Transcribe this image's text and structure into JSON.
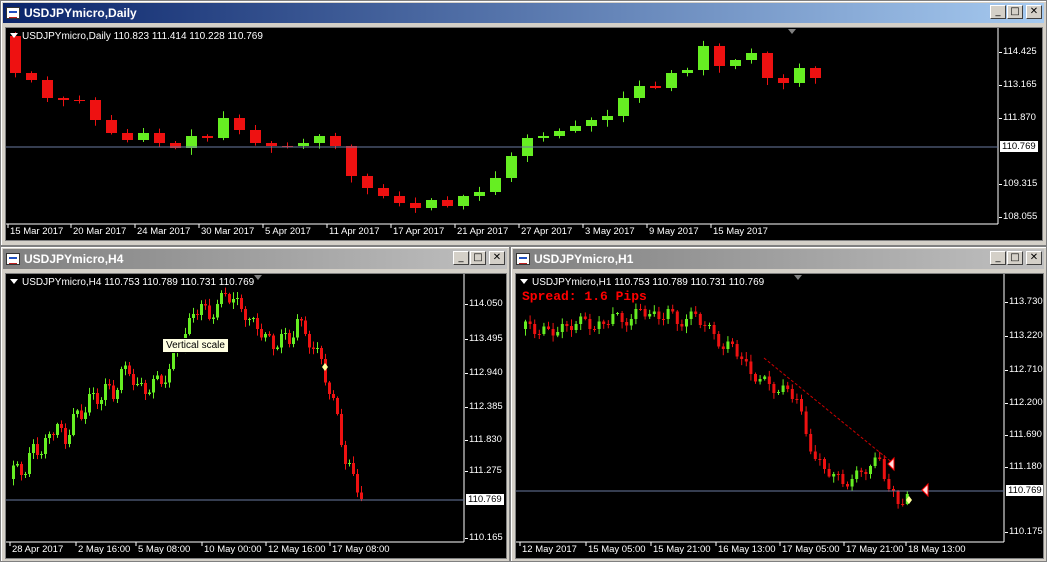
{
  "windows": {
    "daily": {
      "title": "USDJPYmicro,Daily",
      "info": "USDJPYmicro,Daily  110.823 111.414 110.228 110.769",
      "yticks": [
        "114.425",
        "113.165",
        "111.870",
        "110.769",
        "109.315",
        "108.055"
      ],
      "current_price": "110.769",
      "xticks": [
        "15 Mar 2017",
        "20 Mar 2017",
        "24 Mar 2017",
        "30 Mar 2017",
        "5 Apr 2017",
        "11 Apr 2017",
        "17 Apr 2017",
        "21 Apr 2017",
        "27 Apr 2017",
        "3 May 2017",
        "9 May 2017",
        "15 May 2017"
      ]
    },
    "h4": {
      "title": "USDJPYmicro,H4",
      "info": "USDJPYmicro,H4  110.753 110.789 110.731 110.769",
      "tooltip": "Vertical scale",
      "yticks": [
        "114.050",
        "113.495",
        "112.940",
        "112.385",
        "111.830",
        "111.275",
        "110.769",
        "110.165"
      ],
      "current_price": "110.769",
      "xticks": [
        "28 Apr 2017",
        "2 May 16:00",
        "5 May 08:00",
        "10 May 00:00",
        "12 May 16:00",
        "17 May 08:00"
      ]
    },
    "h1": {
      "title": "USDJPYmicro,H1",
      "info": "USDJPYmicro,H1  110.753 110.789 110.731 110.769",
      "spread": "Spread: 1.6 Pips",
      "yticks": [
        "113.730",
        "113.220",
        "112.710",
        "112.200",
        "111.690",
        "111.180",
        "110.769",
        "110.175"
      ],
      "current_price": "110.769",
      "xticks": [
        "12 May 2017",
        "15 May 05:00",
        "15 May 21:00",
        "16 May 13:00",
        "17 May 05:00",
        "17 May 21:00",
        "18 May 13:00"
      ]
    }
  },
  "window_buttons": {
    "minimize": "_",
    "maximize": "□",
    "close": "✕"
  },
  "colors": {
    "bull": "#66ee22",
    "bear": "#ee1111",
    "background": "#000000",
    "price_line": "#6a7aa0",
    "active_title": "#0a246a",
    "inactive_title": "#808080"
  },
  "icons": [
    "chart-window-icon",
    "minimize-icon",
    "maximize-icon",
    "close-icon",
    "dropdown-triangle-icon"
  ]
}
